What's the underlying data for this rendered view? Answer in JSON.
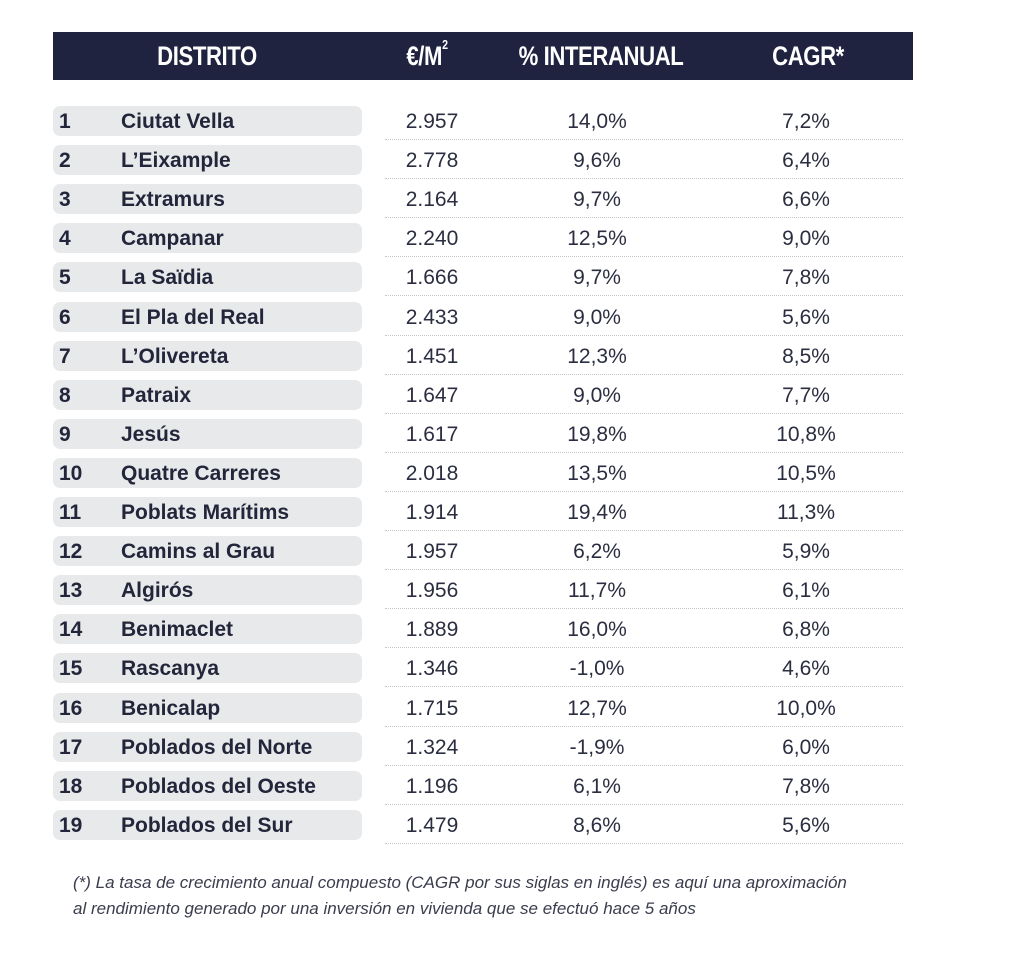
{
  "header": {
    "distrito": "DISTRITO",
    "price": "€/M",
    "price_sup": "2",
    "yoy": "% INTERANUAL",
    "cagr": "CAGR*"
  },
  "rows": [
    {
      "n": "1",
      "name": "Ciutat Vella",
      "price": "2.957",
      "yoy": "14,0%",
      "cagr": "7,2%"
    },
    {
      "n": "2",
      "name": "L’Eixample",
      "price": "2.778",
      "yoy": "9,6%",
      "cagr": "6,4%"
    },
    {
      "n": "3",
      "name": "Extramurs",
      "price": "2.164",
      "yoy": "9,7%",
      "cagr": "6,6%"
    },
    {
      "n": "4",
      "name": "Campanar",
      "price": "2.240",
      "yoy": "12,5%",
      "cagr": "9,0%"
    },
    {
      "n": "5",
      "name": "La Saïdia",
      "price": "1.666",
      "yoy": "9,7%",
      "cagr": "7,8%"
    },
    {
      "n": "6",
      "name": "El Pla del Real",
      "price": "2.433",
      "yoy": "9,0%",
      "cagr": "5,6%"
    },
    {
      "n": "7",
      "name": "L’Olivereta",
      "price": "1.451",
      "yoy": "12,3%",
      "cagr": "8,5%"
    },
    {
      "n": "8",
      "name": "Patraix",
      "price": "1.647",
      "yoy": "9,0%",
      "cagr": "7,7%"
    },
    {
      "n": "9",
      "name": "Jesús",
      "price": "1.617",
      "yoy": "19,8%",
      "cagr": "10,8%"
    },
    {
      "n": "10",
      "name": "Quatre Carreres",
      "price": "2.018",
      "yoy": "13,5%",
      "cagr": "10,5%"
    },
    {
      "n": "11",
      "name": "Poblats Marítims",
      "price": "1.914",
      "yoy": "19,4%",
      "cagr": "11,3%"
    },
    {
      "n": "12",
      "name": "Camins al Grau",
      "price": "1.957",
      "yoy": "6,2%",
      "cagr": "5,9%"
    },
    {
      "n": "13",
      "name": "Algirós",
      "price": "1.956",
      "yoy": "11,7%",
      "cagr": "6,1%"
    },
    {
      "n": "14",
      "name": "Benimaclet",
      "price": "1.889",
      "yoy": "16,0%",
      "cagr": "6,8%"
    },
    {
      "n": "15",
      "name": "Rascanya",
      "price": "1.346",
      "yoy": "-1,0%",
      "cagr": "4,6%"
    },
    {
      "n": "16",
      "name": "Benicalap",
      "price": "1.715",
      "yoy": "12,7%",
      "cagr": "10,0%"
    },
    {
      "n": "17",
      "name": "Poblados del Norte",
      "price": "1.324",
      "yoy": "-1,9%",
      "cagr": "6,0%"
    },
    {
      "n": "18",
      "name": "Poblados del Oeste",
      "price": "1.196",
      "yoy": "6,1%",
      "cagr": "7,8%"
    },
    {
      "n": "19",
      "name": "Poblados del Sur",
      "price": "1.479",
      "yoy": "8,6%",
      "cagr": "5,6%"
    }
  ],
  "footnote": {
    "line1": "(*) La tasa de crecimiento anual compuesto (CAGR por sus siglas en inglés) es aquí una aproximación",
    "line2": "al rendimiento generado por una inversión en vivienda que se efectuó hace 5 años"
  }
}
